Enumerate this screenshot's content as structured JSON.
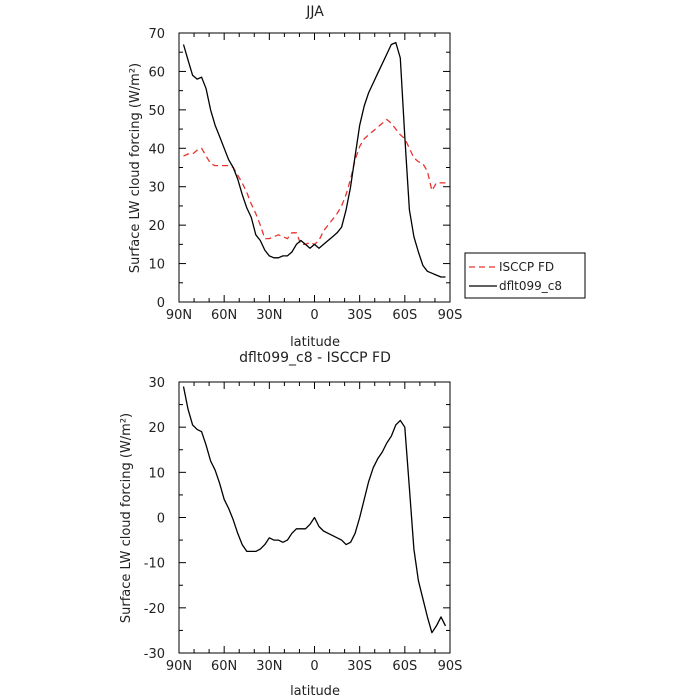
{
  "chart_data": [
    {
      "type": "line",
      "title": "JJA",
      "xlabel": "latitude",
      "ylabel": "Surface LW cloud forcing (W/m²)",
      "x_ticks": [
        "90N",
        "60N",
        "30N",
        "0",
        "30S",
        "60S",
        "90S"
      ],
      "y_ticks": [
        "0",
        "10",
        "20",
        "30",
        "40",
        "50",
        "60",
        "70"
      ],
      "xlim": [
        90,
        -90
      ],
      "ylim": [
        0,
        70
      ],
      "grid": false,
      "legend_position": "right-outside",
      "x": [
        87,
        84,
        81,
        78,
        75,
        72,
        69,
        66,
        63,
        60,
        57,
        54,
        51,
        48,
        45,
        42,
        39,
        36,
        33,
        30,
        27,
        24,
        21,
        18,
        15,
        12,
        9,
        6,
        3,
        0,
        -3,
        -6,
        -9,
        -12,
        -15,
        -18,
        -21,
        -24,
        -27,
        -30,
        -33,
        -36,
        -39,
        -42,
        -45,
        -48,
        -51,
        -54,
        -57,
        -60,
        -63,
        -66,
        -69,
        -72,
        -75,
        -78,
        -81,
        -84,
        -87
      ],
      "series": [
        {
          "name": "ISCCP FD",
          "color": "#e8342e",
          "dash": "dashed",
          "values": [
            38,
            38.5,
            38.5,
            39.5,
            40,
            38,
            36,
            35.5,
            35.5,
            35.5,
            35.5,
            35,
            33,
            31,
            28.5,
            25.5,
            23,
            20,
            16.5,
            16.5,
            17,
            17.5,
            17,
            16.5,
            18,
            18,
            15,
            15,
            15.5,
            15,
            16,
            18.5,
            20,
            21.5,
            23,
            25,
            28,
            32,
            37,
            40.5,
            42.5,
            43.5,
            44.5,
            45.5,
            46.5,
            47.5,
            46.5,
            45,
            43.5,
            42.5,
            40,
            37.5,
            36.5,
            36,
            34,
            29,
            31,
            31,
            31
          ]
        },
        {
          "name": "dflt099_c8",
          "color": "#000000",
          "dash": "solid",
          "values": [
            67,
            63,
            59,
            58,
            58.5,
            55.5,
            50,
            46,
            43,
            40,
            37,
            35,
            32,
            28,
            24.5,
            22,
            17.5,
            16,
            13.5,
            12,
            11.5,
            11.5,
            12,
            12,
            13,
            15,
            16,
            15,
            14,
            15,
            14,
            15,
            16,
            17,
            18,
            19.5,
            24,
            30,
            38,
            46,
            51,
            54.5,
            57,
            59.5,
            62,
            64.5,
            67,
            67.5,
            63.5,
            43,
            24,
            17,
            13,
            9.5,
            8,
            7.5,
            7,
            6.5,
            6.5
          ]
        }
      ]
    },
    {
      "type": "line",
      "title": "dflt099_c8 - ISCCP FD",
      "xlabel": "latitude",
      "ylabel": "Surface LW cloud forcing (W/m²)",
      "x_ticks": [
        "90N",
        "60N",
        "30N",
        "0",
        "30S",
        "60S",
        "90S"
      ],
      "y_ticks": [
        "-30",
        "-20",
        "-10",
        "0",
        "10",
        "20",
        "30"
      ],
      "xlim": [
        90,
        -90
      ],
      "ylim": [
        -30,
        30
      ],
      "grid": false,
      "x": [
        87,
        84,
        81,
        78,
        75,
        72,
        69,
        66,
        63,
        60,
        57,
        54,
        51,
        48,
        45,
        42,
        39,
        36,
        33,
        30,
        27,
        24,
        21,
        18,
        15,
        12,
        9,
        6,
        3,
        0,
        -3,
        -6,
        -9,
        -12,
        -15,
        -18,
        -21,
        -24,
        -27,
        -30,
        -33,
        -36,
        -39,
        -42,
        -45,
        -48,
        -51,
        -54,
        -57,
        -60,
        -63,
        -66,
        -69,
        -72,
        -75,
        -78,
        -81,
        -84,
        -87
      ],
      "series": [
        {
          "color": "#000000",
          "dash": "solid",
          "values": [
            29,
            24,
            20.5,
            19.5,
            19,
            16,
            12.5,
            10.5,
            7.5,
            4,
            2,
            -0.5,
            -3.5,
            -6,
            -7.5,
            -7.5,
            -7.5,
            -7,
            -6,
            -4.5,
            -5,
            -5,
            -5.5,
            -5,
            -3.5,
            -2.5,
            -2.5,
            -2.5,
            -1.5,
            0,
            -2,
            -3,
            -3.5,
            -4,
            -4.5,
            -5,
            -6,
            -5.5,
            -3.5,
            0,
            4,
            8,
            11,
            13,
            14.5,
            16.5,
            18,
            20.5,
            21.5,
            20,
            6.5,
            -7,
            -14,
            -18,
            -22,
            -25.5,
            -24,
            -22,
            -24
          ]
        }
      ]
    }
  ]
}
